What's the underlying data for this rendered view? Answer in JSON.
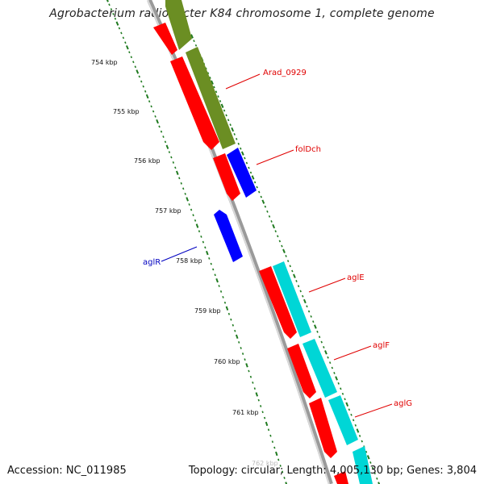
{
  "title": "Agrobacterium radiobacter K84 chromosome 1, complete genome",
  "footer": {
    "accession": "Accession: NC_011985",
    "topology": "Topology: circular; Length: 4,005,130 bp; Genes: 3,804"
  },
  "scale_labels": [
    "754 kbp",
    "755 kbp",
    "756 kbp",
    "757 kbp",
    "758 kbp",
    "759 kbp",
    "760 kbp",
    "761 kbp",
    "762 kbp"
  ],
  "gene_labels": [
    {
      "id": "arad-0929",
      "text": "Arad_0929",
      "color": "#e00000"
    },
    {
      "id": "foldch",
      "text": "folDch",
      "color": "#e00000"
    },
    {
      "id": "agle",
      "text": "aglE",
      "color": "#e00000"
    },
    {
      "id": "aglf",
      "text": "aglF",
      "color": "#e00000"
    },
    {
      "id": "aglg",
      "text": "aglG",
      "color": "#e00000"
    },
    {
      "id": "aglr",
      "text": "aglR",
      "color": "#0000c0"
    }
  ],
  "colors": {
    "cds_red": "#ff0000",
    "cds_olive": "#6b8e23",
    "cds_blue": "#0000ff",
    "cds_cyan": "#00d6d6",
    "backbone": "#8a8a8a",
    "ticks": "#1f7a1f"
  }
}
